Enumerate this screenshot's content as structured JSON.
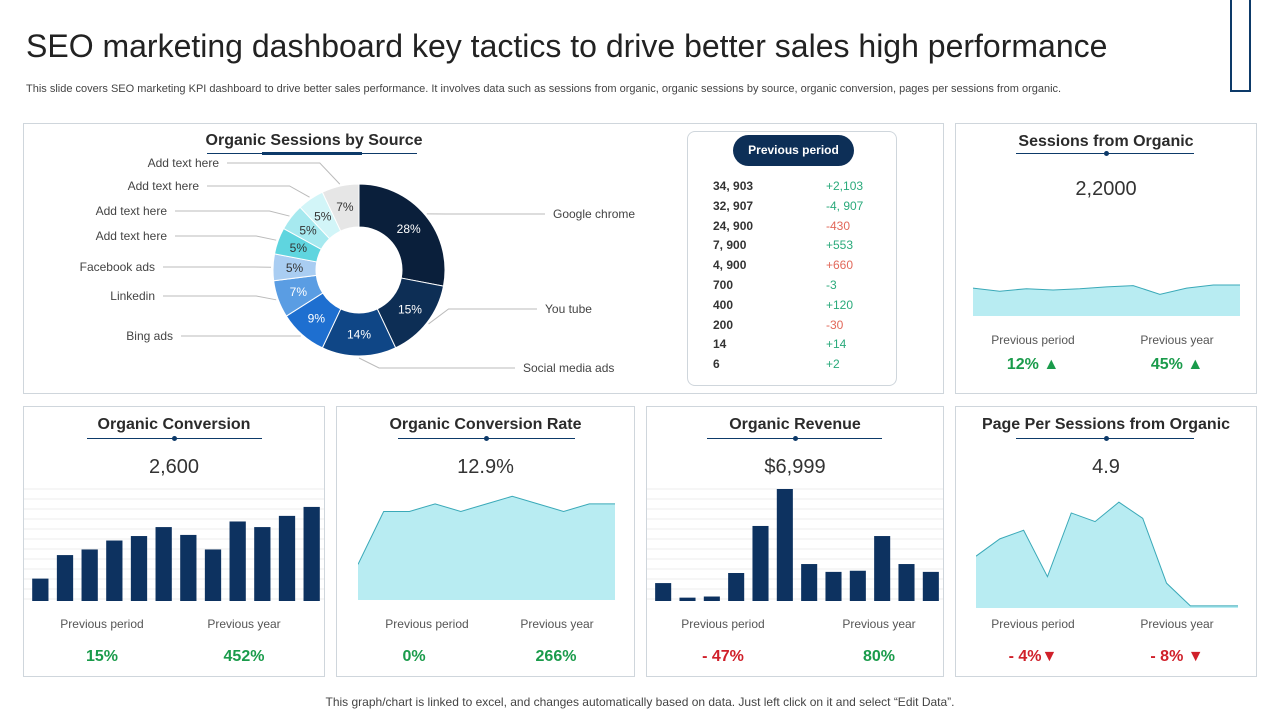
{
  "header": {
    "title": "SEO marketing dashboard key tactics to drive better sales high performance",
    "subtitle": "This slide covers SEO marketing KPI dashboard to drive better sales performance. It involves data such as sessions from organic, organic sessions by source, organic conversion, pages per sessions from organic."
  },
  "footer": "This graph/chart is linked to excel,  and changes automatically based on data. Just left click on it and select “Edit Data”.",
  "colors": {
    "navy": "#0d2f57",
    "accent_light": "#b8ecf2",
    "green": "#1a9b4b",
    "red": "#d0202a"
  },
  "organic_sessions_by_source": {
    "title": "Organic Sessions by Source",
    "chart_data": {
      "type": "pie",
      "donut": true,
      "categories": [
        "Google chrome",
        "You tube",
        "Social media ads",
        "Bing ads",
        "Linkedin",
        "Facebook ads",
        "Add text here",
        "Add text here",
        "Add text here",
        "Add text here"
      ],
      "values": [
        28,
        15,
        14,
        9,
        7,
        5,
        5,
        5,
        5,
        7
      ],
      "value_labels": [
        "28%",
        "15%",
        "14%",
        "9%",
        "7%",
        "5%",
        "5%",
        "5%",
        "5%",
        "7%"
      ],
      "colors": [
        "#0a1f3b",
        "#0d2e55",
        "#0f4686",
        "#1e6fd0",
        "#5a9de3",
        "#a9cdf2",
        "#5fd5df",
        "#a6e9ef",
        "#d2f5f8",
        "#e6e6e6"
      ]
    }
  },
  "previous_period": {
    "title": "Previous period",
    "rows": [
      {
        "value": "34, 903",
        "change": "+2,103",
        "sign": "pos"
      },
      {
        "value": "32, 907",
        "change": "-4, 907",
        "sign": "pos"
      },
      {
        "value": "24, 900",
        "change": "-430",
        "sign": "neg"
      },
      {
        "value": "7, 900",
        "change": "+553",
        "sign": "pos"
      },
      {
        "value": "4, 900",
        "change": "+660",
        "sign": "neg"
      },
      {
        "value": "700",
        "change": "-3",
        "sign": "pos"
      },
      {
        "value": "400",
        "change": "+120",
        "sign": "pos"
      },
      {
        "value": "200",
        "change": "-30",
        "sign": "neg"
      },
      {
        "value": "14",
        "change": "+14",
        "sign": "pos"
      },
      {
        "value": "6",
        "change": "+2",
        "sign": "pos"
      }
    ]
  },
  "sessions_from_organic": {
    "title": "Sessions from Organic",
    "value": "2,2000",
    "prev_period_label": "Previous period",
    "prev_period_value": "12% ▲",
    "prev_year_label": "Previous year",
    "prev_year_value": "45% ▲",
    "chart_data": {
      "type": "area",
      "x": [
        1,
        2,
        3,
        4,
        5,
        6,
        7,
        8,
        9,
        10,
        11
      ],
      "values": [
        45,
        40,
        44,
        42,
        44,
        47,
        49,
        35,
        45,
        50,
        50
      ],
      "ylim": [
        0,
        100
      ]
    }
  },
  "organic_conversion": {
    "title": "Organic Conversion",
    "value": "2,600",
    "prev_period_label": "Previous period",
    "prev_period_value": "15%",
    "prev_year_label": "Previous year",
    "prev_year_value": "452%",
    "chart_data": {
      "type": "bar",
      "x": [
        1,
        2,
        3,
        4,
        5,
        6,
        7,
        8,
        9,
        10,
        11,
        12
      ],
      "values": [
        20,
        41,
        46,
        54,
        58,
        66,
        59,
        46,
        71,
        66,
        76,
        84
      ],
      "ylim": [
        0,
        100
      ]
    }
  },
  "organic_conversion_rate": {
    "title": "Organic Conversion Rate",
    "value": "12.9%",
    "prev_period_label": "Previous period",
    "prev_period_value": "0%",
    "prev_year_label": "Previous year",
    "prev_year_value": "266%",
    "chart_data": {
      "type": "area",
      "x": [
        1,
        2,
        3,
        4,
        5,
        6,
        7,
        8,
        9,
        10,
        11
      ],
      "values": [
        33,
        82,
        82,
        89,
        82,
        89,
        96,
        89,
        82,
        89,
        89
      ],
      "ylim": [
        0,
        100
      ]
    }
  },
  "organic_revenue": {
    "title": "Organic Revenue",
    "value": "$6,999",
    "prev_period_label": "Previous period",
    "prev_period_value": "- 47%",
    "prev_year_label": "Previous year",
    "prev_year_value": "80%",
    "chart_data": {
      "type": "bar",
      "x": [
        1,
        2,
        3,
        4,
        5,
        6,
        7,
        8,
        9,
        10,
        11,
        12
      ],
      "values": [
        16,
        3,
        4,
        25,
        67,
        100,
        33,
        26,
        27,
        58,
        33,
        26
      ],
      "ylim": [
        0,
        100
      ]
    }
  },
  "page_per_sessions": {
    "title": "Page Per Sessions from Organic",
    "value": "4.9",
    "prev_period_label": "Previous period",
    "prev_period_value": "- 4%▼",
    "prev_year_label": "Previous year",
    "prev_year_value": "- 8% ▼",
    "chart_data": {
      "type": "area",
      "x": [
        1,
        2,
        3,
        4,
        5,
        6,
        7,
        8,
        9,
        10,
        11,
        12
      ],
      "values": [
        48,
        64,
        72,
        29,
        88,
        80,
        98,
        83,
        23,
        2,
        2,
        2
      ],
      "ylim": [
        0,
        100
      ]
    }
  }
}
